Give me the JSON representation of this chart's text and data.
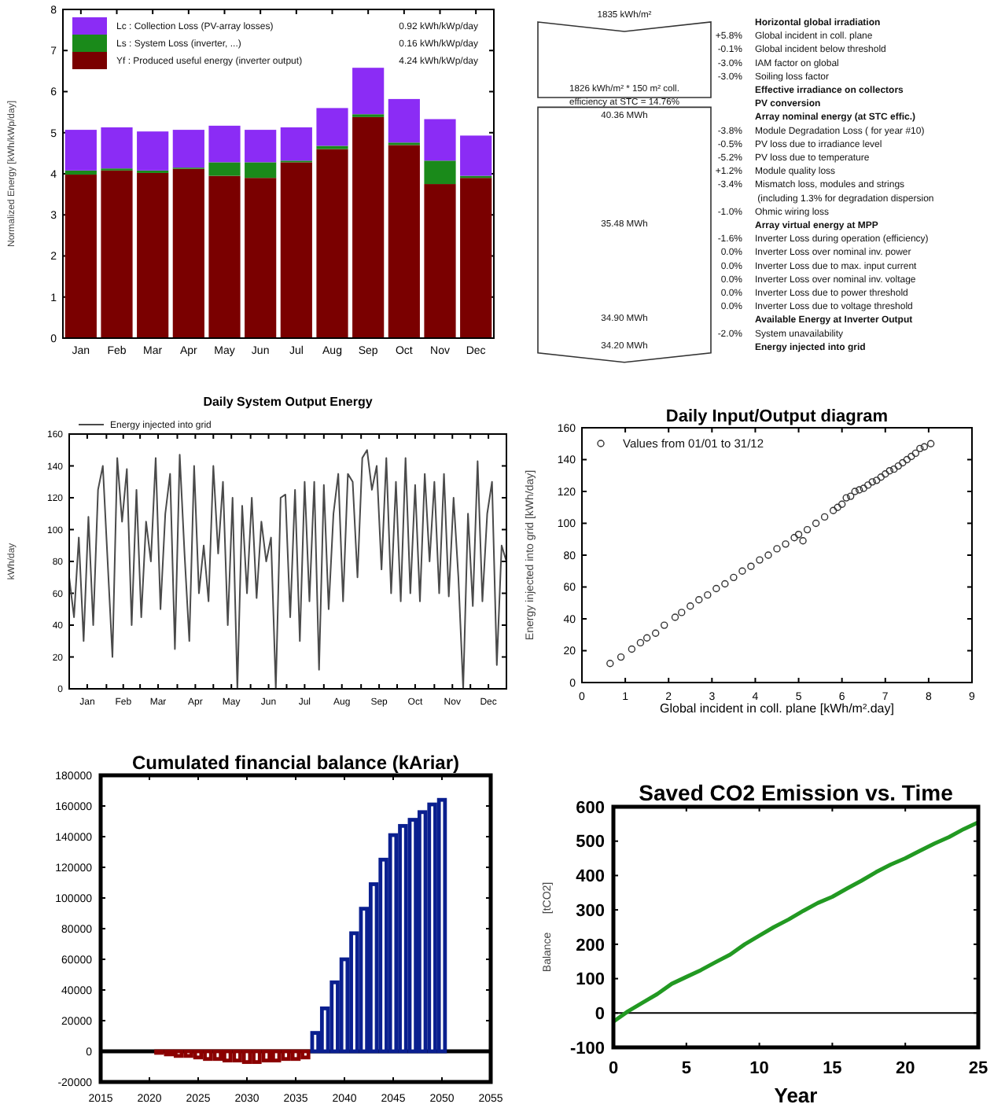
{
  "chart_data": [
    {
      "type": "bar",
      "stacked": true,
      "ylabel": "Normalized Energy [kWh/kWp/day]",
      "categories": [
        "Jan",
        "Feb",
        "Mar",
        "Apr",
        "May",
        "Jun",
        "Jul",
        "Aug",
        "Sep",
        "Oct",
        "Nov",
        "Dec"
      ],
      "ylim": [
        0,
        8
      ],
      "yticks": [
        0,
        1,
        2,
        3,
        4,
        5,
        6,
        7,
        8
      ],
      "legend": "top left",
      "series": [
        {
          "name": "Yf : Produced useful energy  (inverter output)",
          "color": "#7a0000",
          "values": [
            3.98,
            4.08,
            4.02,
            4.12,
            3.95,
            3.9,
            4.28,
            4.6,
            5.38,
            4.7,
            3.75,
            3.9
          ]
        },
        {
          "name": "Ls : System Loss  (inverter, ...)",
          "color": "#1a8a1a",
          "values": [
            0.1,
            0.05,
            0.06,
            0.03,
            0.33,
            0.38,
            0.04,
            0.08,
            0.07,
            0.06,
            0.57,
            0.05
          ]
        },
        {
          "name": "Lc : Collection Loss (PV-array losses)",
          "color": "#8b2cf5",
          "values": [
            0.99,
            1.0,
            0.95,
            0.92,
            0.89,
            0.79,
            0.81,
            0.92,
            1.13,
            1.06,
            1.01,
            0.98
          ]
        }
      ],
      "annotations": [
        "0.92 kWh/kWp/day",
        "0.16 kWh/kWp/day",
        "4.24 kWh/kWp/day"
      ]
    },
    {
      "type": "other",
      "categories": [
        "Horizontal global irradiation",
        "Global incident in coll. plane",
        "Global incident below threshold",
        "IAM factor on global",
        "Soiling loss factor",
        "Effective irradiance on collectors",
        "PV conversion",
        "Array nominal energy (at STC effic.)",
        "Module Degradation Loss ( for year #10)",
        "PV loss due to irradiance level",
        "PV loss due to temperature",
        "Module quality loss",
        "Mismatch loss, modules and strings\n (including 1.3% for degradation dispersion",
        "Ohmic wiring loss",
        "Array virtual energy at MPP",
        "Inverter Loss during operation (efficiency)",
        "Inverter Loss over nominal inv. power",
        "Inverter Loss due to max. input current",
        "Inverter Loss over nominal inv. voltage",
        "Inverter Loss due to power threshold",
        "Inverter Loss due to voltage threshold",
        "Available Energy at Inverter Output",
        "System unavailability",
        "Energy injected into grid"
      ],
      "value_labels": [
        null,
        "+5.8%",
        "-0.1%",
        "-3.0%",
        "-3.0%",
        null,
        null,
        null,
        "-3.8%",
        "-0.5%",
        "-5.2%",
        "+1.2%",
        "-3.4%",
        "-1.0%",
        null,
        "-1.6%",
        "0.0%",
        "0.0%",
        "0.0%",
        "0.0%",
        "0.0%",
        null,
        "-2.0%",
        null
      ],
      "annotations": [
        {
          "text": "1835 kWh/m²",
          "y": "Horizontal global irradiation"
        },
        {
          "text": "1826 kWh/m² * 150 m² coll.",
          "y": "Effective irradiance on collectors"
        },
        {
          "text": "efficiency at STC = 14.76%",
          "y": "PV conversion"
        },
        {
          "text": "40.36 MWh",
          "y": "Array nominal energy (at STC effic.)"
        },
        {
          "text": "35.48 MWh",
          "y": "Array virtual energy at MPP"
        },
        {
          "text": "34.90 MWh",
          "y": "Available Energy at Inverter Output"
        },
        {
          "text": "34.20 MWh",
          "y": "Energy injected into grid"
        }
      ]
    },
    {
      "type": "line",
      "title": "Daily System Output Energy",
      "ylabel": "kWh/day",
      "xlim": [
        "--01-01",
        "--12-31"
      ],
      "ylim": [
        0,
        160
      ],
      "yticks": [
        0,
        20,
        40,
        60,
        80,
        100,
        120,
        140,
        160
      ],
      "legend": "top left",
      "xticks": [
        {
          "value": "--01-01",
          "label": null
        },
        {
          "value": "--01-16",
          "label": "Jan"
        },
        {
          "value": "--02-01",
          "label": null
        },
        {
          "value": "--02-15",
          "label": "Feb"
        },
        {
          "value": "--03-01",
          "label": null
        },
        {
          "value": "--03-16",
          "label": "Mar"
        },
        {
          "value": "--04-01",
          "label": null
        },
        {
          "value": "--04-16",
          "label": "Apr"
        },
        {
          "value": "--05-01",
          "label": null
        },
        {
          "value": "--05-16",
          "label": "May"
        },
        {
          "value": "--06-01",
          "label": null
        },
        {
          "value": "--06-16",
          "label": "Jun"
        },
        {
          "value": "--07-01",
          "label": null
        },
        {
          "value": "--07-16",
          "label": "Jul"
        },
        {
          "value": "--08-01",
          "label": null
        },
        {
          "value": "--08-16",
          "label": "Aug"
        },
        {
          "value": "--09-01",
          "label": null
        },
        {
          "value": "--09-16",
          "label": "Sep"
        },
        {
          "value": "--10-01",
          "label": null
        },
        {
          "value": "--10-16",
          "label": "Oct"
        },
        {
          "value": "--11-01",
          "label": null
        },
        {
          "value": "--11-16",
          "label": "Nov"
        },
        {
          "value": "--12-01",
          "label": null
        },
        {
          "value": "--12-16",
          "label": "Dec"
        }
      ],
      "series": [
        {
          "name": "Energy injected into grid",
          "color": "#4a4a4a",
          "x": [
            "--01-01",
            "--01-05",
            "--01-09",
            "--01-13",
            "--01-17",
            "--01-21",
            "--01-25",
            "--01-29",
            "--02-02",
            "--02-06",
            "--02-10",
            "--02-14",
            "--02-18",
            "--02-22",
            "--02-26",
            "--03-02",
            "--03-06",
            "--03-10",
            "--03-14",
            "--03-18",
            "--03-22",
            "--03-26",
            "--03-30",
            "--04-03",
            "--04-07",
            "--04-11",
            "--04-15",
            "--04-19",
            "--04-23",
            "--04-27",
            "--05-01",
            "--05-05",
            "--05-09",
            "--05-13",
            "--05-17",
            "--05-21",
            "--05-25",
            "--05-29",
            "--06-02",
            "--06-06",
            "--06-10",
            "--06-14",
            "--06-18",
            "--06-22",
            "--06-26",
            "--06-30",
            "--07-04",
            "--07-08",
            "--07-12",
            "--07-16",
            "--07-20",
            "--07-24",
            "--07-28",
            "--08-01",
            "--08-05",
            "--08-09",
            "--08-13",
            "--08-17",
            "--08-21",
            "--08-25",
            "--08-29",
            "--09-02",
            "--09-06",
            "--09-10",
            "--09-14",
            "--09-18",
            "--09-22",
            "--09-26",
            "--09-30",
            "--10-04",
            "--10-08",
            "--10-12",
            "--10-16",
            "--10-20",
            "--10-24",
            "--10-28",
            "--11-01",
            "--11-05",
            "--11-09",
            "--11-13",
            "--11-17",
            "--11-21",
            "--11-25",
            "--11-29",
            "--12-03",
            "--12-07",
            "--12-11",
            "--12-15",
            "--12-19",
            "--12-23",
            "--12-27",
            "--12-31"
          ],
          "values": [
            70,
            45,
            95,
            30,
            108,
            40,
            125,
            140,
            80,
            20,
            145,
            105,
            138,
            40,
            125,
            45,
            105,
            80,
            145,
            50,
            110,
            135,
            25,
            147,
            85,
            30,
            140,
            60,
            90,
            55,
            140,
            85,
            130,
            40,
            120,
            0,
            115,
            60,
            120,
            57,
            105,
            80,
            95,
            0,
            120,
            122,
            45,
            125,
            30,
            130,
            55,
            130,
            12,
            128,
            50,
            110,
            135,
            55,
            135,
            130,
            70,
            145,
            150,
            125,
            140,
            75,
            145,
            60,
            130,
            55,
            145,
            60,
            128,
            55,
            135,
            80,
            130,
            60,
            135,
            58,
            120,
            70,
            0,
            110,
            52,
            143,
            55,
            110,
            130,
            15,
            90,
            80
          ]
        }
      ]
    },
    {
      "type": "scatter",
      "title": "Daily Input/Output diagram",
      "xlabel": "Global incident in coll. plane [kWh/m².day]",
      "ylabel": "Energy injected into grid [kWh/day]",
      "xlim": [
        0,
        9
      ],
      "xticks": [
        0,
        1,
        2,
        3,
        4,
        5,
        6,
        7,
        8,
        9
      ],
      "ylim": [
        0,
        160
      ],
      "yticks": [
        0,
        20,
        40,
        60,
        80,
        100,
        120,
        140,
        160
      ],
      "marker": "circle",
      "legend": "top left",
      "series": [
        {
          "name": "Values from 01/01 to 31/12",
          "color": "#333333",
          "x": [
            0.65,
            0.9,
            1.15,
            1.35,
            1.5,
            1.7,
            1.9,
            2.15,
            2.3,
            2.5,
            2.7,
            2.9,
            3.1,
            3.3,
            3.5,
            3.7,
            3.9,
            4.1,
            4.3,
            4.5,
            4.7,
            4.9,
            5.0,
            5.1,
            5.2,
            5.4,
            5.6,
            5.8,
            5.9,
            6.0,
            6.1,
            6.2,
            6.3,
            6.4,
            6.5,
            6.6,
            6.7,
            6.8,
            6.9,
            7.0,
            7.1,
            7.2,
            7.3,
            7.4,
            7.5,
            7.6,
            7.7,
            7.8,
            7.9,
            8.05
          ],
          "values": [
            12,
            16,
            21,
            25,
            28,
            31,
            36,
            41,
            44,
            48,
            52,
            55,
            59,
            62,
            66,
            70,
            73,
            77,
            80,
            84,
            87,
            91,
            93,
            89,
            96,
            100,
            104,
            108,
            110,
            112,
            116,
            117,
            120,
            121,
            122,
            124,
            126,
            127,
            129,
            131,
            133,
            134,
            136,
            138,
            140,
            142,
            144,
            147,
            148,
            150
          ]
        }
      ]
    },
    {
      "type": "bar",
      "title": "Cumulated financial balance (kAriar)",
      "xlim": [
        2015,
        2055
      ],
      "xticks": [
        2015,
        2020,
        2025,
        2030,
        2035,
        2040,
        2045,
        2050,
        2055
      ],
      "ylim": [
        -20000,
        180000
      ],
      "yticks": [
        -20000,
        0,
        20000,
        40000,
        60000,
        80000,
        100000,
        120000,
        140000,
        160000,
        180000
      ],
      "ref_lines": [
        {
          "axis": "y",
          "value": 0,
          "color": "#000000"
        }
      ],
      "x": [
        2021,
        2022,
        2023,
        2024,
        2025,
        2026,
        2027,
        2028,
        2029,
        2030,
        2031,
        2032,
        2033,
        2034,
        2035,
        2036,
        2037,
        2038,
        2039,
        2040,
        2041,
        2042,
        2043,
        2044,
        2045,
        2046,
        2047,
        2048,
        2049,
        2050
      ],
      "values": [
        -1000,
        -2000,
        -3000,
        -3000,
        -4000,
        -5000,
        -5000,
        -6000,
        -6000,
        -7000,
        -7000,
        -6000,
        -6000,
        -5000,
        -5000,
        -4000,
        12000,
        28000,
        45000,
        60000,
        77000,
        93000,
        109000,
        125000,
        141000,
        147000,
        151000,
        156000,
        161000,
        164000
      ],
      "colors": [
        "#8b0000",
        "#8b0000",
        "#8b0000",
        "#8b0000",
        "#8b0000",
        "#8b0000",
        "#8b0000",
        "#8b0000",
        "#8b0000",
        "#8b0000",
        "#8b0000",
        "#8b0000",
        "#8b0000",
        "#8b0000",
        "#8b0000",
        "#8b0000",
        "#0a1f8f",
        "#0a1f8f",
        "#0a1f8f",
        "#0a1f8f",
        "#0a1f8f",
        "#0a1f8f",
        "#0a1f8f",
        "#0a1f8f",
        "#0a1f8f",
        "#0a1f8f",
        "#0a1f8f",
        "#0a1f8f",
        "#0a1f8f",
        "#0a1f8f"
      ]
    },
    {
      "type": "line",
      "title": "Saved CO2 Emission vs. Time",
      "xlabel": "Year",
      "ylabel": "Balance      [tCO2]",
      "xlim": [
        0,
        25
      ],
      "xticks": [
        0,
        5,
        10,
        15,
        20,
        25
      ],
      "ylim": [
        -100,
        600
      ],
      "yticks": [
        -100,
        0,
        100,
        200,
        300,
        400,
        500,
        600
      ],
      "ref_lines": [
        {
          "axis": "y",
          "value": 0,
          "color": "#000000"
        }
      ],
      "x": [
        0,
        1,
        2,
        3,
        4,
        5,
        6,
        7,
        8,
        9,
        10,
        11,
        12,
        13,
        14,
        15,
        16,
        17,
        18,
        19,
        20,
        21,
        22,
        23,
        24,
        25
      ],
      "values": [
        -25,
        5,
        30,
        55,
        85,
        105,
        125,
        148,
        170,
        200,
        225,
        250,
        272,
        297,
        320,
        338,
        362,
        385,
        410,
        432,
        450,
        472,
        493,
        512,
        535,
        555
      ],
      "color": "#229922"
    }
  ]
}
